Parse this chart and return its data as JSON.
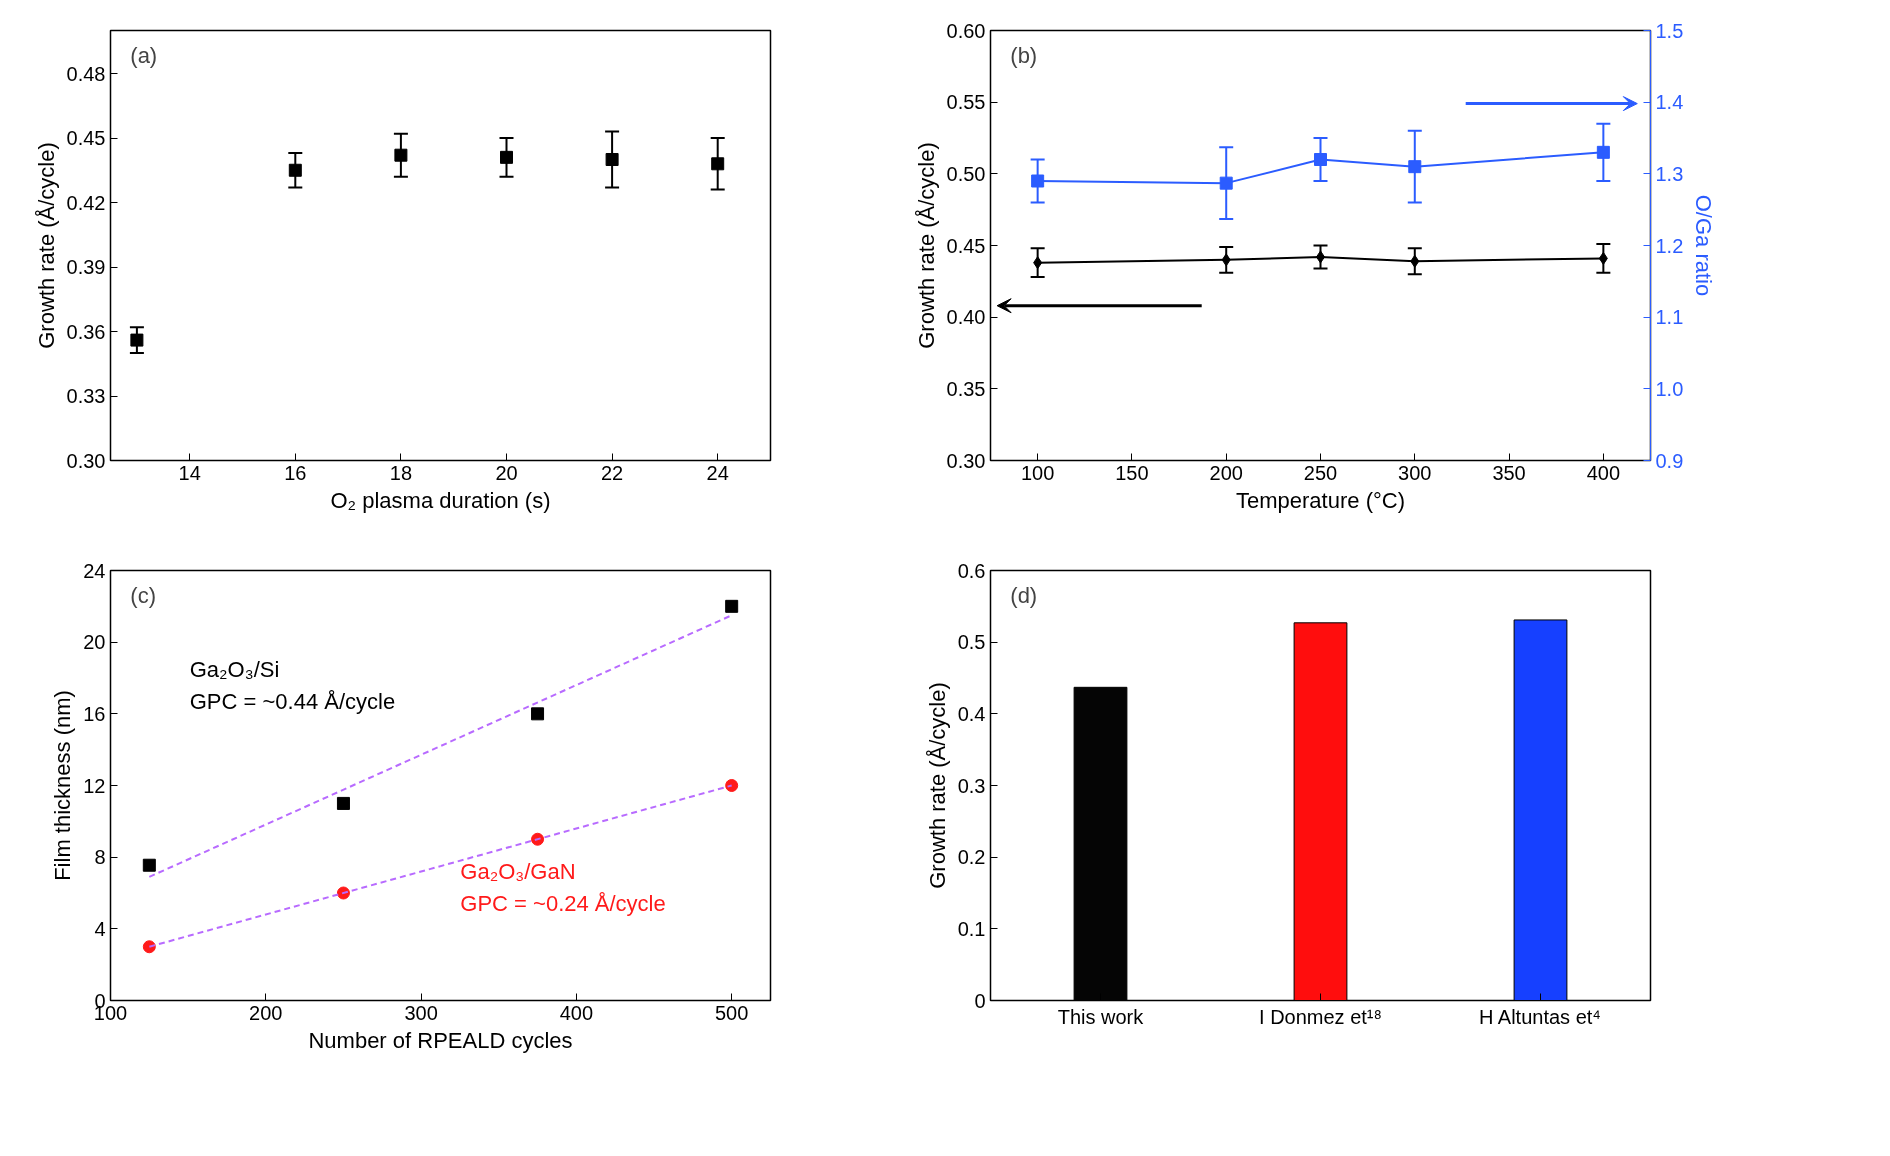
{
  "chart_data": [
    {
      "type": "scatter",
      "xlabel": "O₂ plasma duration (s)",
      "ylabel": "Growth rate (Å/cycle)",
      "annotations": [
        "(a)"
      ],
      "marker": "square",
      "color": "#000000",
      "x": [
        13,
        16,
        18,
        20,
        22,
        24
      ],
      "values": [
        0.356,
        0.435,
        0.442,
        0.441,
        0.44,
        0.438
      ],
      "errors": [
        0.006,
        0.008,
        0.01,
        0.009,
        0.013,
        0.012
      ],
      "xlim": [
        12.5,
        25
      ],
      "xticks": [
        14,
        16,
        18,
        20,
        22,
        24
      ],
      "ylim": [
        0.3,
        0.5
      ],
      "yticks": [
        {
          "value": 0.3,
          "label": "0.30"
        },
        {
          "value": 0.33,
          "label": "0.33"
        },
        {
          "value": 0.36,
          "label": "0.36"
        },
        {
          "value": 0.39,
          "label": "0.39"
        },
        {
          "value": 0.42,
          "label": "0.42"
        },
        {
          "value": 0.45,
          "label": "0.45"
        },
        {
          "value": 0.48,
          "label": "0.48"
        }
      ]
    },
    {
      "type": "line",
      "xlabel": "Temperature (°C)",
      "ylabel": "Growth rate (Å/cycle)",
      "y2label": "O/Ga ratio",
      "annotations": [
        "(b)"
      ],
      "x": [
        100,
        200,
        250,
        300,
        400
      ],
      "series": [
        {
          "color": "#000000",
          "marker": "diamond",
          "values": [
            0.438,
            0.44,
            0.442,
            0.439,
            0.441
          ],
          "errors": [
            0.01,
            0.009,
            0.008,
            0.009,
            0.01
          ]
        },
        {
          "color": "#2b5cff",
          "marker": "square",
          "axis": "y2",
          "values": [
            1.29,
            1.287,
            1.32,
            1.31,
            1.33
          ],
          "errors": [
            0.03,
            0.05,
            0.03,
            0.05,
            0.04
          ]
        }
      ],
      "xlim": [
        75,
        425
      ],
      "xticks": [
        100,
        150,
        200,
        250,
        300,
        350,
        400
      ],
      "ylim": [
        0.3,
        0.6
      ],
      "yticks": [
        {
          "value": 0.3,
          "label": "0.30"
        },
        {
          "value": 0.35,
          "label": "0.35"
        },
        {
          "value": 0.4,
          "label": "0.40"
        },
        {
          "value": 0.45,
          "label": "0.45"
        },
        {
          "value": 0.5,
          "label": "0.50"
        },
        {
          "value": 0.55,
          "label": "0.55"
        },
        {
          "value": 0.6,
          "label": "0.60"
        }
      ],
      "y2lim": [
        0.9,
        1.5
      ],
      "y2ticks": [
        0.9,
        {
          "value": 1,
          "label": "1.0"
        },
        1.1,
        1.2,
        1.3,
        1.4,
        1.5
      ]
    },
    {
      "type": "scatter",
      "xlabel": "Number of RPEALD cycles",
      "ylabel": "Film thickness (nm)",
      "annotations": [
        "(c)",
        "GPC = ~0.44 Å/cycle",
        "GPC = ~0.24 Å/cycle"
      ],
      "series": [
        {
          "name": "Ga₂O₃/Si",
          "color": "#000000",
          "marker": "square",
          "x": [
            125,
            250,
            375,
            500
          ],
          "values": [
            7.55,
            11.0,
            16.0,
            22.0
          ]
        },
        {
          "name": "Ga₂O₃/GaN",
          "color": "#ff1a1a",
          "marker": "circle",
          "x": [
            125,
            250,
            375,
            500
          ],
          "values": [
            3.0,
            6.0,
            9.0,
            12.0
          ]
        },
        {
          "type": "line",
          "line_style": "dashed",
          "color": "#b86bff",
          "x": [
            125,
            500
          ],
          "values": [
            6.9,
            21.5
          ]
        },
        {
          "type": "line",
          "line_style": "dashed",
          "color": "#b86bff",
          "x": [
            125,
            500
          ],
          "values": [
            3.0,
            12.0
          ]
        }
      ],
      "xlim": [
        100,
        525
      ],
      "xticks": [
        100,
        200,
        300,
        400,
        500
      ],
      "ylim": [
        0,
        24
      ],
      "yticks": [
        0,
        4,
        8,
        12,
        16,
        20,
        24
      ]
    },
    {
      "type": "bar",
      "ylabel": "Growth rate (Å/cycle)",
      "annotations": [
        "(d)"
      ],
      "categories": [
        "This work",
        "I Donmez et¹⁸",
        "H Altuntas et⁴"
      ],
      "values": [
        0.437,
        0.527,
        0.531
      ],
      "colors": [
        "#050505",
        "#ff0d0d",
        "#1640ff"
      ],
      "ylim": [
        0,
        0.6
      ],
      "yticks": [
        0,
        0.1,
        0.2,
        0.3,
        0.4,
        0.5,
        0.6
      ]
    }
  ]
}
